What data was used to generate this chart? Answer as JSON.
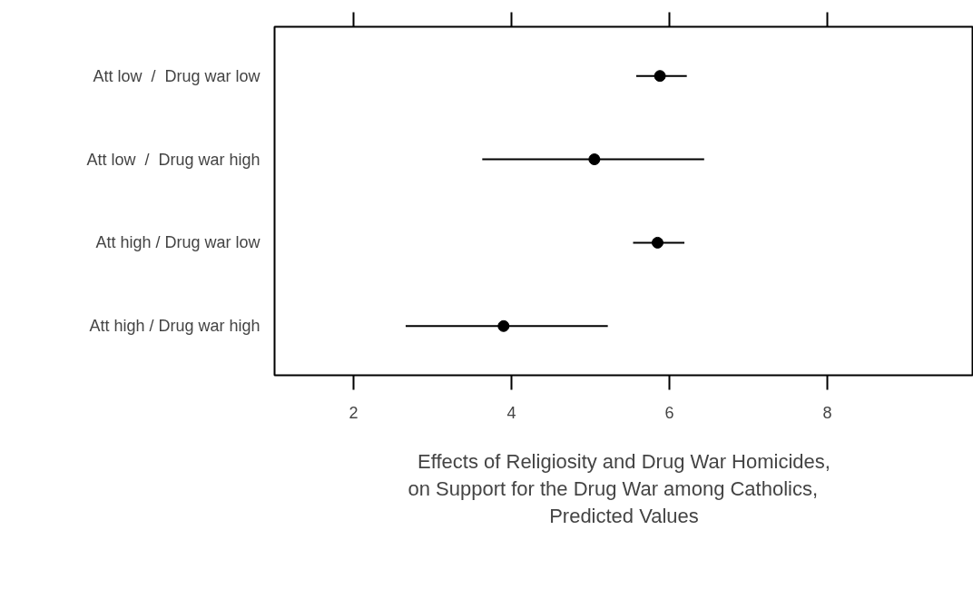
{
  "chart_data": {
    "type": "scatter",
    "orientation": "horizontal",
    "categories": [
      "Att low  /  Drug war low",
      "Att low  /  Drug war high",
      "Att high / Drug war low",
      "Att high / Drug war high"
    ],
    "values": [
      5.88,
      5.05,
      5.85,
      3.9
    ],
    "errors": [
      [
        5.58,
        6.22
      ],
      [
        3.63,
        6.44
      ],
      [
        5.54,
        6.19
      ],
      [
        2.66,
        5.22
      ]
    ],
    "color": "#000000",
    "marker": "circle",
    "xlabel": "Effects of Religiosity and Drug War Homicides,\n    on Support for the Drug War among Catholics,\nPredicted Values",
    "xlim": [
      1.0,
      9.85
    ],
    "xticks": [
      2,
      4,
      6,
      8
    ],
    "grid": false
  }
}
